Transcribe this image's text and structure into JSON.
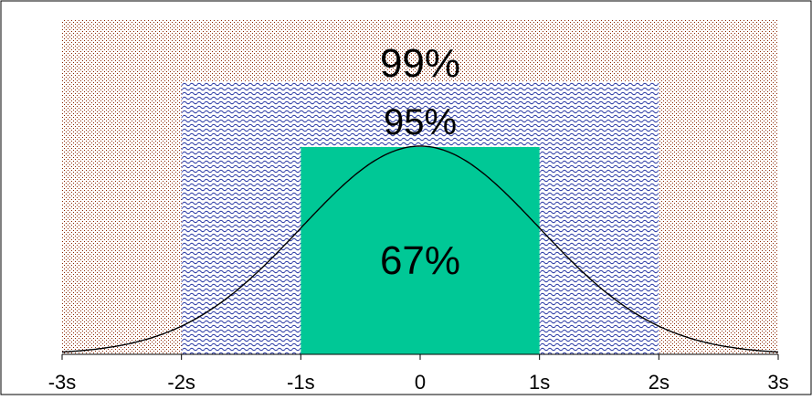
{
  "chart_data": {
    "type": "area",
    "title": "",
    "xlabel": "",
    "ylabel": "",
    "xlim": [
      -3,
      3
    ],
    "ylim": [
      0,
      1
    ],
    "x_tick_values": [
      -3,
      -2,
      -1,
      0,
      1,
      2,
      3
    ],
    "x_tick_labels": [
      "-3s",
      "-2s",
      "-1s",
      "0",
      "1s",
      "2s",
      "3s"
    ],
    "bands": [
      {
        "label": "99%",
        "x_range": [
          -3,
          3
        ],
        "pattern": "dots",
        "color": "#8B2500"
      },
      {
        "label": "95%",
        "x_range": [
          -2,
          2
        ],
        "pattern": "waves",
        "color": "#1F2FA0"
      },
      {
        "label": "67%",
        "x_range": [
          -1,
          1
        ],
        "pattern": "solid",
        "color": "#00C896"
      }
    ],
    "curve": {
      "type": "normal-density",
      "x": [
        -3.0,
        -2.5,
        -2.0,
        -1.5,
        -1.0,
        -0.5,
        0.0,
        0.5,
        1.0,
        1.5,
        2.0,
        2.5,
        3.0
      ],
      "y": [
        0.011,
        0.044,
        0.135,
        0.325,
        0.607,
        0.882,
        1.0,
        0.882,
        0.607,
        0.325,
        0.135,
        0.044,
        0.011
      ]
    },
    "grid": false,
    "legend": "none"
  }
}
